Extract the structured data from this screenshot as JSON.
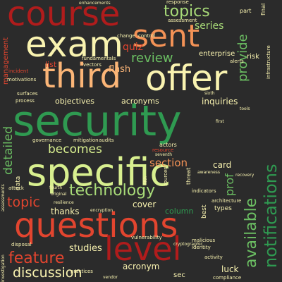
{
  "colors": {
    "background": "#2b2b2b",
    "dark_red": "#b01c1c",
    "red": "#e2452f",
    "orange": "#f39256",
    "light_orange": "#fbb577",
    "cream": "#f9f3b0",
    "yellow_green": "#d8ef8f",
    "light_green": "#a8db78",
    "green": "#6cc063",
    "dark_green": "#2f9a51"
  },
  "words": [
    "course",
    "exam",
    "sent",
    "third",
    "offer",
    "security",
    "specific",
    "questions",
    "level",
    "topics",
    "series",
    "provide",
    "review",
    "quiz",
    "flash",
    "objectives",
    "acronyms",
    "inquiries",
    "enterprise",
    "section",
    "becomes",
    "technology",
    "available",
    "notifications",
    "topic",
    "thanks",
    "cover",
    "column",
    "feature",
    "studies",
    "discussion",
    "acronym",
    "luck",
    "card",
    "detailed",
    "prof",
    "management",
    "list",
    "incident",
    "fundamentals",
    "vectors",
    "change",
    "control",
    "assessment",
    "response",
    "enhancements",
    "part",
    "final",
    "risk",
    "infrastructure",
    "alerts",
    "surfaces",
    "process",
    "motivations",
    "governance",
    "mitigation",
    "audits",
    "actors",
    "resource",
    "seventh",
    "sixth",
    "first",
    "tools",
    "data",
    "attack",
    "resilience",
    "encryption",
    "architecture",
    "types",
    "indicators",
    "threat",
    "sources",
    "fifth",
    "fourth",
    "original",
    "awareness",
    "recovery",
    "disposal",
    "vulnerability",
    "cryptographic",
    "malicious",
    "identity",
    "activity",
    "compliance",
    "sec",
    "vendor",
    "practices",
    "best",
    "assessments",
    "investigation"
  ]
}
